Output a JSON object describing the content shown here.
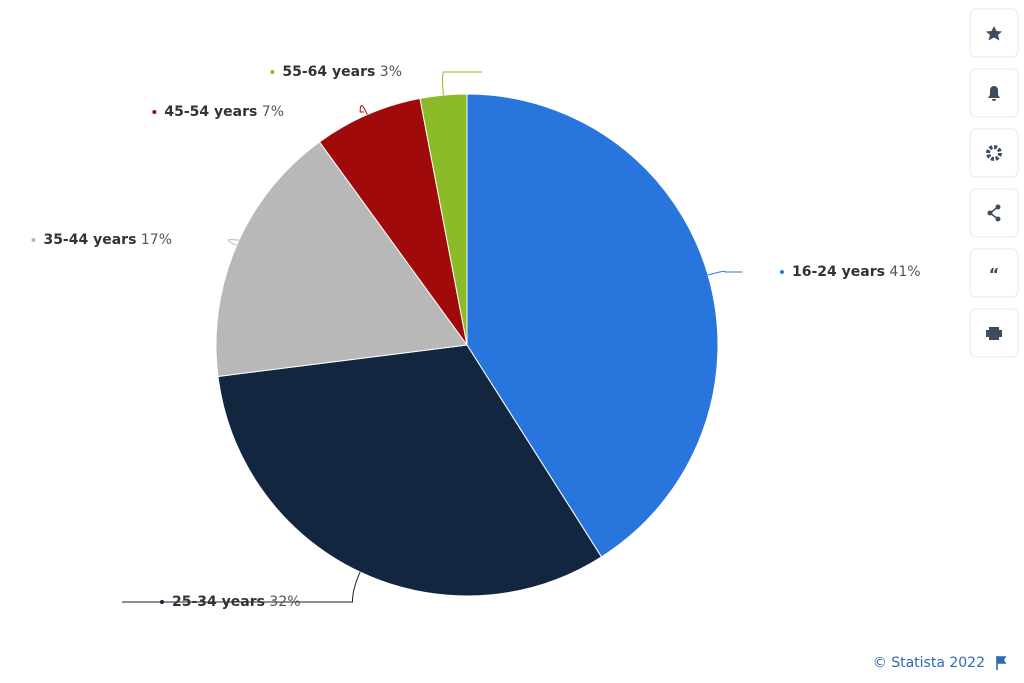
{
  "chart_data": {
    "type": "pie",
    "categories": [
      "16-24 years",
      "25-34 years",
      "35-44 years",
      "45-54 years",
      "55-64 years"
    ],
    "values": [
      41,
      32,
      17,
      7,
      3
    ],
    "value_labels": [
      "41%",
      "32%",
      "17%",
      "7%",
      "3%"
    ],
    "colors": [
      "#2876dd",
      "#12263f",
      "#b8b8b8",
      "#a10a0a",
      "#8bbb26"
    ],
    "credit": "© Statista 2022"
  }
}
